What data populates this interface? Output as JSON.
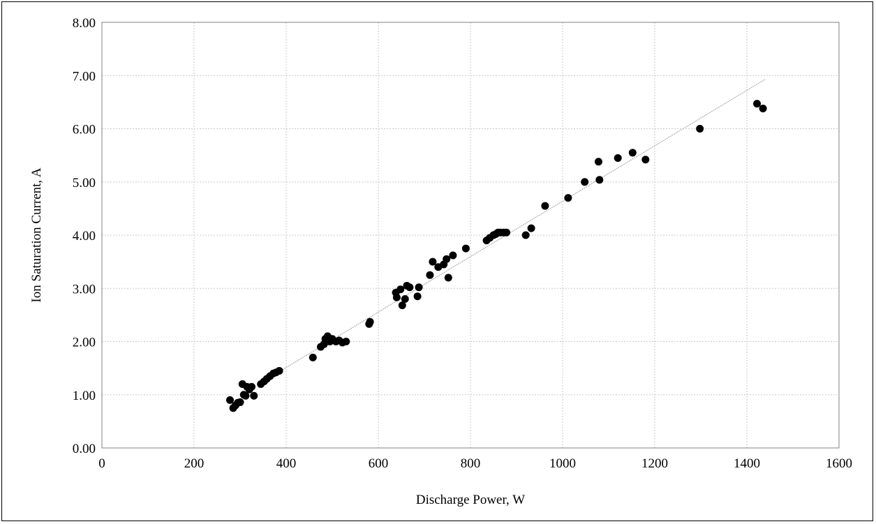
{
  "chart_data": {
    "type": "scatter",
    "title": "",
    "xlabel": "Discharge  Power, W",
    "ylabel": "Ion Saturation  Current, A",
    "xlim": [
      0,
      1600
    ],
    "ylim": [
      0,
      8
    ],
    "xticks": [
      0,
      200,
      400,
      600,
      800,
      1000,
      1200,
      1400,
      1600
    ],
    "xtick_labels": [
      "0",
      "200",
      "400",
      "600",
      "800",
      "1000",
      "1200",
      "1400",
      "1600"
    ],
    "yticks": [
      0,
      1,
      2,
      3,
      4,
      5,
      6,
      7,
      8
    ],
    "ytick_labels": [
      "0.00",
      "1.00",
      "2.00",
      "3.00",
      "4.00",
      "5.00",
      "6.00",
      "7.00",
      "8.00"
    ],
    "grid": true,
    "legend": "none",
    "series": [
      {
        "color": "#000000",
        "marker": "circle",
        "points": [
          [
            278,
            0.9
          ],
          [
            285,
            0.75
          ],
          [
            290,
            0.8
          ],
          [
            295,
            0.85
          ],
          [
            300,
            0.86
          ],
          [
            305,
            1.2
          ],
          [
            308,
            1.0
          ],
          [
            312,
            0.98
          ],
          [
            315,
            1.15
          ],
          [
            320,
            1.1
          ],
          [
            325,
            1.15
          ],
          [
            330,
            0.98
          ],
          [
            345,
            1.2
          ],
          [
            352,
            1.25
          ],
          [
            358,
            1.3
          ],
          [
            365,
            1.35
          ],
          [
            372,
            1.4
          ],
          [
            378,
            1.42
          ],
          [
            385,
            1.45
          ],
          [
            458,
            1.7
          ],
          [
            475,
            1.9
          ],
          [
            482,
            1.95
          ],
          [
            485,
            2.05
          ],
          [
            490,
            2.1
          ],
          [
            495,
            2.0
          ],
          [
            500,
            2.05
          ],
          [
            508,
            2.0
          ],
          [
            515,
            2.02
          ],
          [
            522,
            1.98
          ],
          [
            530,
            2.0
          ],
          [
            580,
            2.33
          ],
          [
            582,
            2.37
          ],
          [
            638,
            2.92
          ],
          [
            640,
            2.83
          ],
          [
            648,
            2.98
          ],
          [
            652,
            2.68
          ],
          [
            658,
            2.8
          ],
          [
            662,
            3.05
          ],
          [
            668,
            3.02
          ],
          [
            685,
            2.85
          ],
          [
            688,
            3.02
          ],
          [
            712,
            3.25
          ],
          [
            718,
            3.5
          ],
          [
            730,
            3.4
          ],
          [
            742,
            3.45
          ],
          [
            748,
            3.55
          ],
          [
            752,
            3.2
          ],
          [
            762,
            3.62
          ],
          [
            790,
            3.75
          ],
          [
            835,
            3.9
          ],
          [
            842,
            3.95
          ],
          [
            850,
            4.0
          ],
          [
            855,
            4.02
          ],
          [
            860,
            4.05
          ],
          [
            865,
            4.05
          ],
          [
            872,
            4.05
          ],
          [
            878,
            4.05
          ],
          [
            920,
            4.0
          ],
          [
            932,
            4.13
          ],
          [
            962,
            4.55
          ],
          [
            1012,
            4.7
          ],
          [
            1048,
            5.0
          ],
          [
            1078,
            5.38
          ],
          [
            1080,
            5.04
          ],
          [
            1120,
            5.45
          ],
          [
            1152,
            5.55
          ],
          [
            1180,
            5.42
          ],
          [
            1298,
            6.0
          ],
          [
            1422,
            6.47
          ],
          [
            1435,
            6.38
          ]
        ]
      }
    ],
    "trendline": {
      "type": "linear",
      "color": "#a0a0a0",
      "x": [
        388,
        1440
      ],
      "y": [
        1.45,
        6.93
      ]
    }
  }
}
